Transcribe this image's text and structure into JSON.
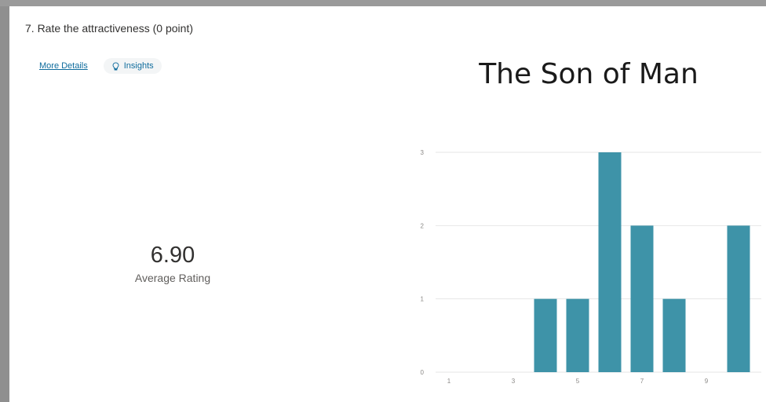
{
  "question": {
    "title": "7. Rate the attractiveness (0 point)",
    "more_details": "More Details",
    "insights": "Insights",
    "insights_icon": "lightbulb-icon"
  },
  "summary": {
    "average_value": "6.90",
    "average_label": "Average Rating"
  },
  "colors": {
    "bar": "#3e93a8",
    "link": "#0f6c9d",
    "grid": "#e6e6e6"
  },
  "chart_data": {
    "type": "bar",
    "title": "The Son of Man",
    "categories": [
      1,
      2,
      3,
      4,
      5,
      6,
      7,
      8,
      9,
      10
    ],
    "values": [
      0,
      0,
      0,
      1,
      1,
      3,
      2,
      1,
      0,
      2
    ],
    "x_tick_labels": [
      "1",
      "3",
      "5",
      "7",
      "9"
    ],
    "y_tick_labels": [
      "0",
      "1",
      "2",
      "3"
    ],
    "ylim": [
      0,
      3
    ],
    "grid": true
  }
}
